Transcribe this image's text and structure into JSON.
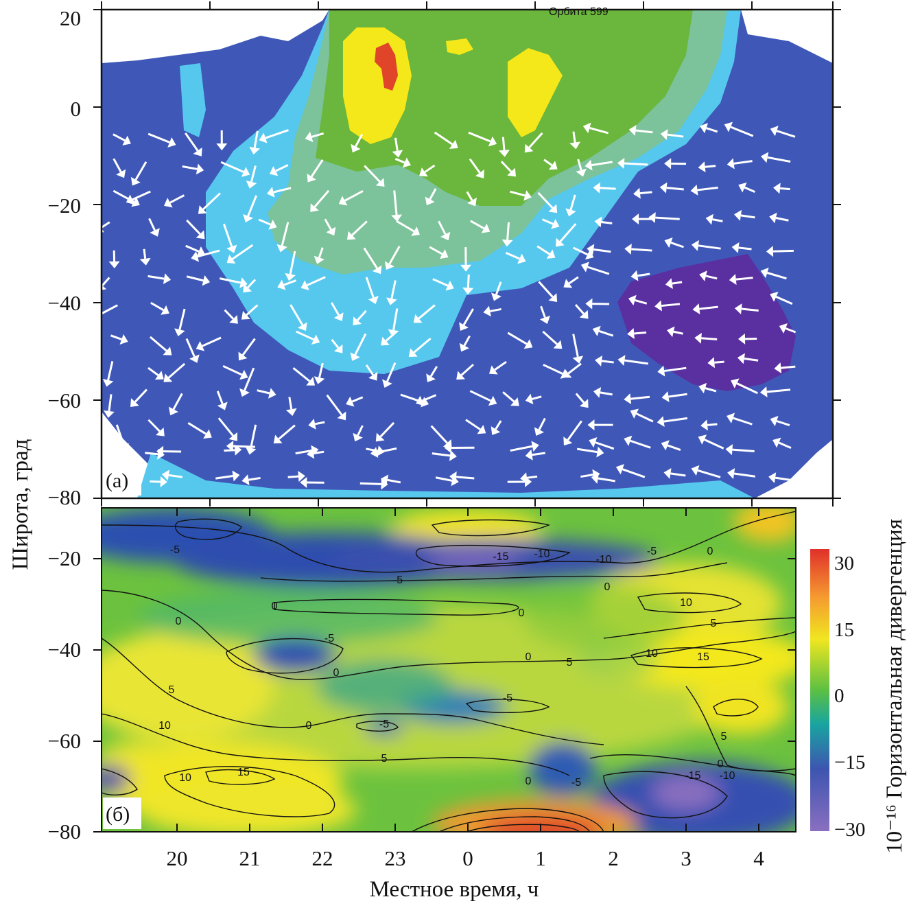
{
  "chart_data": [
    {
      "type": "heatmap",
      "panel": "(a)",
      "orbit_label": "Орбита 599",
      "xlim": [
        "19:00",
        "04:30"
      ],
      "ylim": [
        -80,
        20
      ],
      "yticks": [
        "20",
        "0",
        "−20",
        "−40",
        "−60",
        "−80"
      ],
      "colors": [
        "#5a2fa0",
        "#3f58b8",
        "#56c8ee",
        "#7cc29a",
        "#6bb63c",
        "#f4e81a",
        "#e0452a"
      ],
      "vectors": "white arrows (neutral wind)"
    },
    {
      "type": "heatmap",
      "panel": "(б)",
      "xticks": [
        "20",
        "21",
        "22",
        "23",
        "0",
        "1",
        "2",
        "3",
        "4"
      ],
      "yticks": [
        "−20",
        "−40",
        "−60",
        "−80"
      ],
      "ylim": [
        -85,
        -8
      ],
      "contour_labels": [
        "-5",
        "-15",
        "-10",
        "-10",
        "-5",
        "0",
        "-5",
        "0",
        "0",
        "0",
        "10",
        "5",
        "-5",
        "0",
        "10",
        "15",
        "5",
        "0",
        "5",
        "-5",
        "10",
        "0",
        "-5",
        "5",
        "5",
        "0",
        "15",
        "10",
        "0",
        "-5",
        "-15",
        "-10",
        "0"
      ],
      "colorbar": {
        "ticks": [
          "30",
          "15",
          "0",
          "−15",
          "−30"
        ],
        "range": [
          -30,
          30
        ],
        "colors": [
          "#8a6fc0",
          "#3d55b0",
          "#19a5a0",
          "#5cc042",
          "#f0e620",
          "#f59a30",
          "#e0302a"
        ]
      }
    }
  ],
  "axes": {
    "ylabel": "Широта, град",
    "xlabel": "Местное время, ч",
    "colorbar_label": "10⁻¹⁶ Горизонтальная дивергенция"
  }
}
